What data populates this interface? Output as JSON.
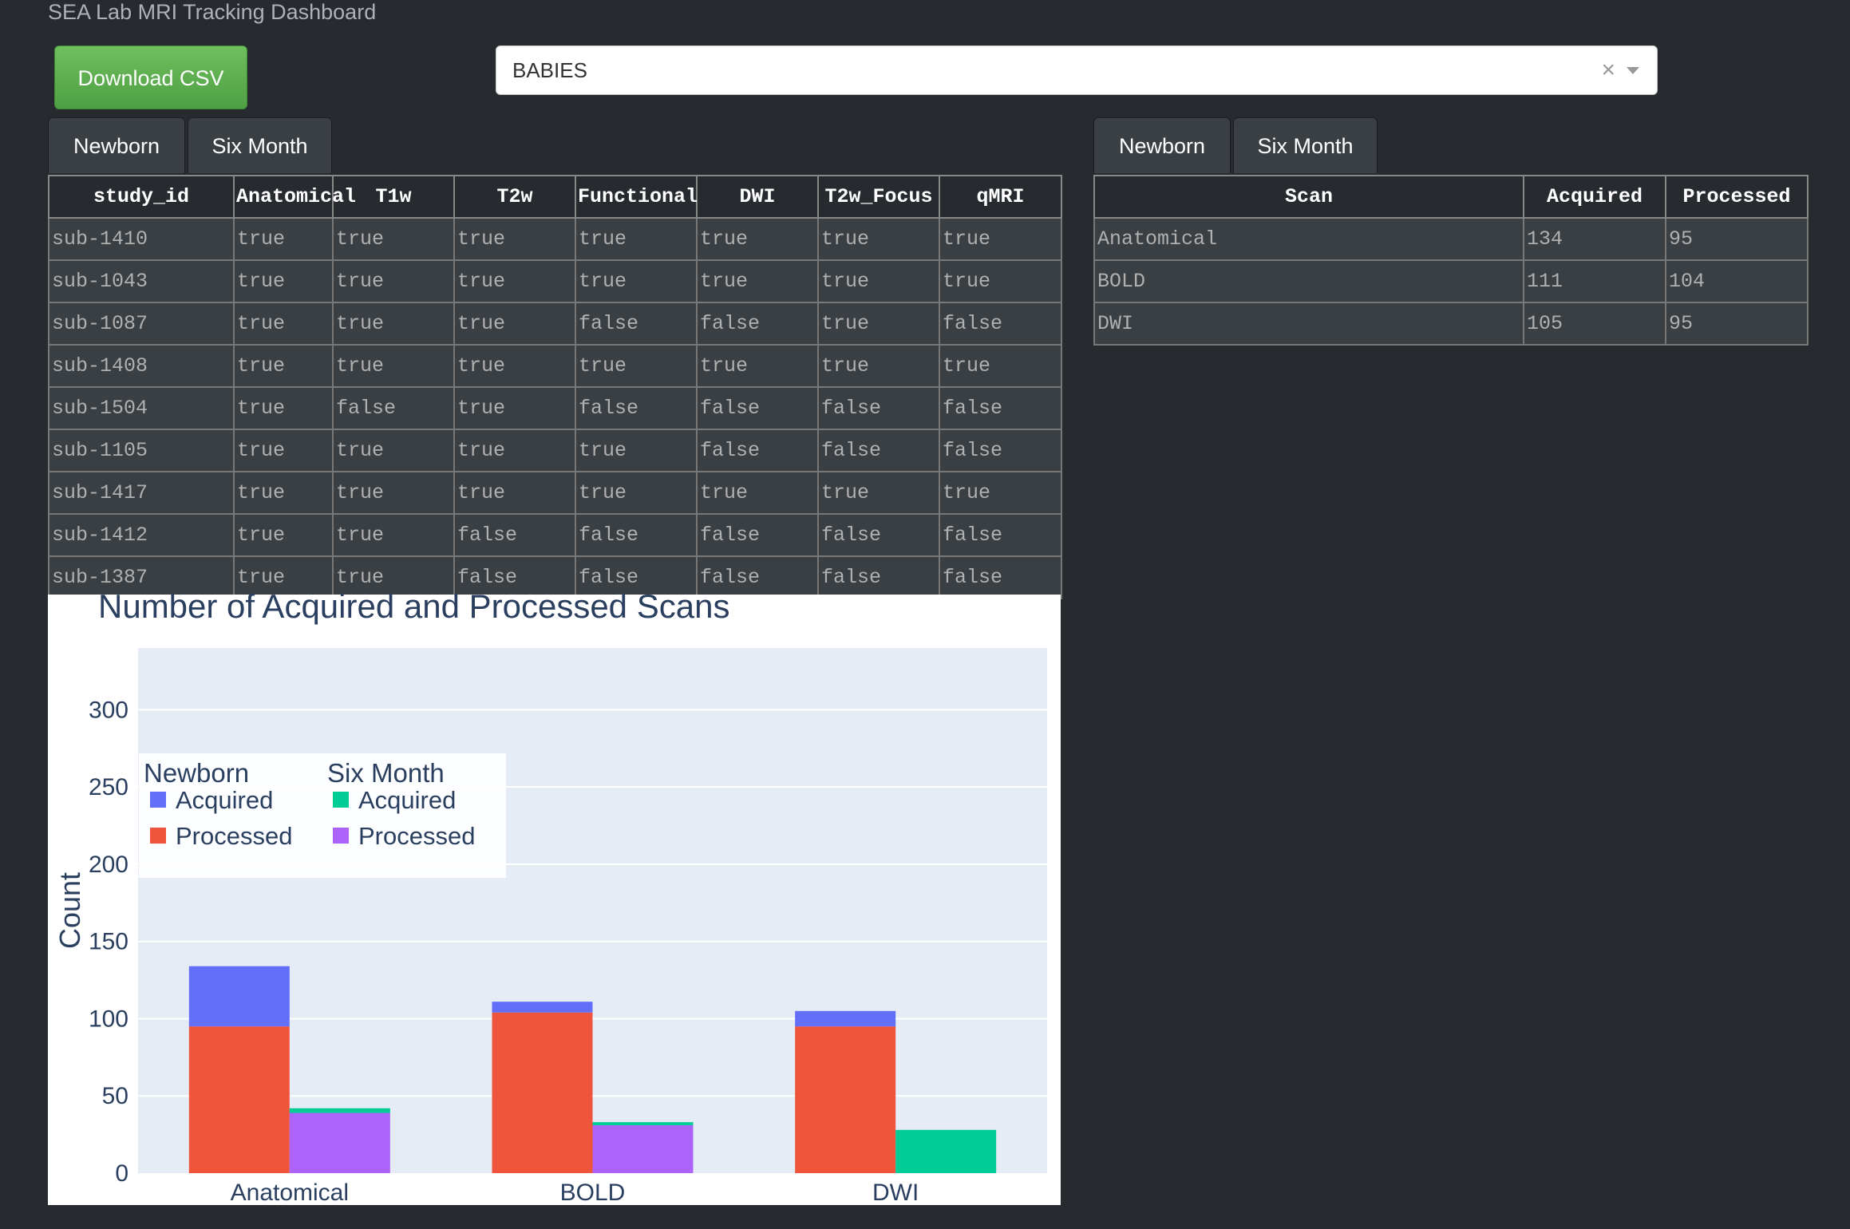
{
  "app": {
    "title": "SEA Lab MRI Tracking Dashboard"
  },
  "toolbar": {
    "download_label": "Download CSV"
  },
  "dropdown": {
    "selected": "BABIES",
    "clear": "×"
  },
  "left_tabs": [
    "Newborn",
    "Six Month"
  ],
  "right_tabs": [
    "Newborn",
    "Six Month"
  ],
  "subject_table": {
    "columns": [
      "study_id",
      "Anatomical",
      "T1w",
      "T2w",
      "Functional",
      "DWI",
      "T2w_Focus",
      "qMRI"
    ],
    "rows": [
      [
        "sub-1410",
        "true",
        "true",
        "true",
        "true",
        "true",
        "true",
        "true"
      ],
      [
        "sub-1043",
        "true",
        "true",
        "true",
        "true",
        "true",
        "true",
        "true"
      ],
      [
        "sub-1087",
        "true",
        "true",
        "true",
        "false",
        "false",
        "true",
        "false"
      ],
      [
        "sub-1408",
        "true",
        "true",
        "true",
        "true",
        "true",
        "true",
        "true"
      ],
      [
        "sub-1504",
        "true",
        "false",
        "true",
        "false",
        "false",
        "false",
        "false"
      ],
      [
        "sub-1105",
        "true",
        "true",
        "true",
        "true",
        "false",
        "false",
        "false"
      ],
      [
        "sub-1417",
        "true",
        "true",
        "true",
        "true",
        "true",
        "true",
        "true"
      ],
      [
        "sub-1412",
        "true",
        "true",
        "false",
        "false",
        "false",
        "false",
        "false"
      ],
      [
        "sub-1387",
        "true",
        "true",
        "false",
        "false",
        "false",
        "false",
        "false"
      ]
    ]
  },
  "summary_table": {
    "columns": [
      "Scan",
      "Acquired",
      "Processed"
    ],
    "rows": [
      [
        "Anatomical",
        "134",
        "95"
      ],
      [
        "BOLD",
        "111",
        "104"
      ],
      [
        "DWI",
        "105",
        "95"
      ]
    ]
  },
  "chart_data": {
    "type": "bar",
    "title": "Number of Acquired and Processed Scans",
    "xlabel": "",
    "ylabel": "Count",
    "categories": [
      "Anatomical",
      "BOLD",
      "DWI"
    ],
    "ylim": [
      0,
      340
    ],
    "yticks": [
      0,
      50,
      100,
      150,
      200,
      250,
      300
    ],
    "grid": true,
    "legend_position": "top-left",
    "legend_groups": [
      "Newborn",
      "Six Month"
    ],
    "series": [
      {
        "name": "Acquired",
        "group": "Newborn",
        "color": "#636efa",
        "values": [
          134,
          111,
          105
        ]
      },
      {
        "name": "Processed",
        "group": "Newborn",
        "color": "#ef553b",
        "values": [
          95,
          104,
          95
        ]
      },
      {
        "name": "Acquired",
        "group": "Six Month",
        "color": "#00cc96",
        "values": [
          42,
          33,
          28
        ]
      },
      {
        "name": "Processed",
        "group": "Six Month",
        "color": "#ab63fa",
        "values": [
          39,
          31,
          0
        ]
      }
    ]
  }
}
